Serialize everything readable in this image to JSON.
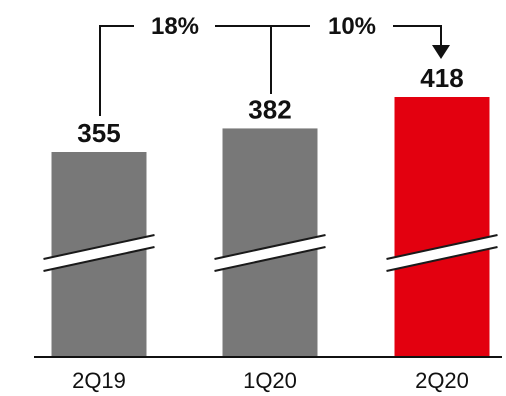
{
  "chart_data": {
    "type": "bar",
    "categories": [
      "2Q19",
      "1Q20",
      "2Q20"
    ],
    "values": [
      355,
      382,
      418
    ],
    "value_labels": [
      "355",
      "382",
      "418"
    ],
    "axis_break": true,
    "colors": [
      "#787878",
      "#787878",
      "#e3000f"
    ],
    "growth": [
      {
        "from": "2Q19",
        "to": "2Q20",
        "label": "18%"
      },
      {
        "from": "1Q20",
        "to": "2Q20",
        "label": "10%"
      }
    ],
    "title": "",
    "xlabel": "",
    "ylabel": ""
  }
}
